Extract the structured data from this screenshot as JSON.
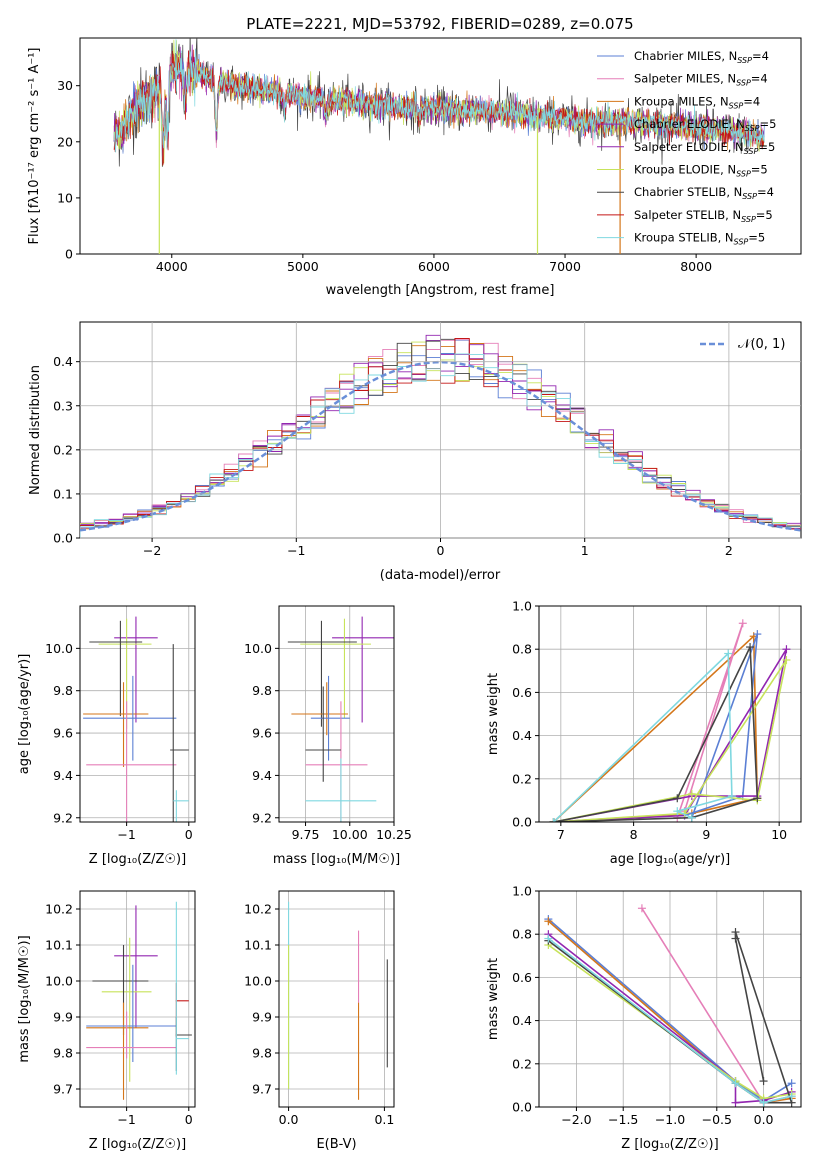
{
  "colors": {
    "Chabrier MILES": "#5b7fd4",
    "Salpeter MILES": "#e57fb8",
    "Kroupa MILES": "#d4761a",
    "Chabrier ELODIE": "#9226b0",
    "Salpeter ELODIE": "#9226b0",
    "Kroupa ELODIE": "#c7e35a",
    "Chabrier STELIB": "#444444",
    "Salpeter STELIB": "#c41616",
    "Kroupa STELIB": "#7fd8e0"
  },
  "chart_data": [
    {
      "id": "spectrum",
      "type": "line",
      "title": "PLATE=2221, MJD=53792, FIBERID=0289, z=0.075",
      "xlabel": "wavelength [Angstrom, rest frame]",
      "ylabel": "Flux [fλ10⁻¹⁷ erg cm⁻² s⁻¹ A⁻¹]",
      "xlim": [
        3300,
        8800
      ],
      "ylim": [
        0,
        38.5
      ],
      "xticks": [
        4000,
        5000,
        6000,
        7000,
        8000
      ],
      "yticks": [
        0,
        10,
        20,
        30
      ],
      "grid": false,
      "legend_position": "top-right",
      "legend": [
        "Chabrier MILES, N_SSP=4",
        "Salpeter MILES, N_SSP=4",
        "Kroupa MILES, N_SSP=4",
        "Chabrier ELODIE, N_SSP=5",
        "Salpeter ELODIE, N_SSP=5",
        "Kroupa ELODIE, N_SSP=5",
        "Chabrier STELIB, N_SSP=4",
        "Salpeter STELIB, N_SSP=5",
        "Kroupa STELIB, N_SSP=5"
      ],
      "continuum": {
        "x": [
          3560,
          3650,
          3700,
          3800,
          3900,
          3960,
          4000,
          4100,
          4200,
          4300,
          4400,
          4600,
          4800,
          5000,
          5200,
          5400,
          5600,
          5800,
          6000,
          6200,
          6400,
          6600,
          6800,
          7000,
          7200,
          7400,
          7600,
          7800,
          8000,
          8200,
          8400,
          8520
        ],
        "y": [
          21,
          23,
          25.5,
          28,
          29,
          31,
          33,
          33,
          32.5,
          31,
          30.5,
          29.5,
          29,
          28,
          27.5,
          27,
          26.5,
          26,
          26,
          25.5,
          25.5,
          25,
          24.5,
          24,
          23.5,
          23.5,
          23.5,
          23,
          22.5,
          22,
          21.5,
          20.5
        ]
      },
      "data_gaps": [
        {
          "x": 3905,
          "y_low": 0
        },
        {
          "x": 6790,
          "y_low": 0
        },
        {
          "x": 7420,
          "y_low": 0
        }
      ]
    },
    {
      "id": "residuals",
      "type": "line",
      "xlabel": "(data-model)/error",
      "ylabel": "Normed distribution",
      "xlim": [
        -2.5,
        2.5
      ],
      "ylim": [
        0,
        0.49
      ],
      "xticks": [
        -2,
        -1,
        0,
        1,
        2
      ],
      "yticks": [
        0.0,
        0.1,
        0.2,
        0.3,
        0.4
      ],
      "grid": true,
      "legend_position": "top-right",
      "legend": [
        "𝒩(0, 1)"
      ],
      "gaussian": {
        "mean": 0,
        "sigma": 1
      }
    },
    {
      "id": "age-vs-Z",
      "type": "scatter",
      "xlabel": "Z [log₁₀(Z/Z☉)]",
      "ylabel": "age  [log₁₀(age/yr)]",
      "xlim": [
        -1.75,
        0.1
      ],
      "ylim": [
        9.18,
        10.2
      ],
      "xticks": [
        -1,
        0
      ],
      "yticks": [
        9.2,
        9.4,
        9.6,
        9.8,
        10.0
      ],
      "grid": true,
      "points": [
        {
          "x": -0.85,
          "y": 10.05,
          "xerr": [
            0.35,
            0.35
          ],
          "yerr": [
            0.4,
            0.1
          ],
          "series": "Chabrier ELODIE"
        },
        {
          "x": -1.0,
          "y": 10.02,
          "xerr": [
            0.45,
            0.4
          ],
          "yerr": [
            0.4,
            0.12
          ],
          "series": "Kroupa ELODIE"
        },
        {
          "x": -1.1,
          "y": 10.03,
          "xerr": [
            0.5,
            0.35
          ],
          "yerr": [
            0.35,
            0.1
          ],
          "series": "Chabrier STELIB"
        },
        {
          "x": -1.05,
          "y": 9.69,
          "xerr": [
            0.65,
            0.4
          ],
          "yerr": [
            0.25,
            0.15
          ],
          "series": "Kroupa MILES"
        },
        {
          "x": -0.9,
          "y": 9.67,
          "xerr": [
            0.8,
            0.7
          ],
          "yerr": [
            0.2,
            0.2
          ],
          "series": "Chabrier MILES"
        },
        {
          "x": -1.0,
          "y": 9.45,
          "xerr": [
            0.65,
            0.8
          ],
          "yerr": [
            0.3,
            0.3
          ],
          "series": "Salpeter MILES"
        },
        {
          "x": -0.25,
          "y": 9.52,
          "xerr": [
            0.05,
            0.25
          ],
          "yerr": [
            0.5,
            0.5
          ],
          "series": "Chabrier STELIB"
        },
        {
          "x": -0.2,
          "y": 9.28,
          "xerr": [
            0.05,
            0.2
          ],
          "yerr": [
            0.7,
            0.05
          ],
          "series": "Kroupa STELIB"
        }
      ]
    },
    {
      "id": "age-vs-mass",
      "type": "scatter",
      "xlabel": "mass [log₁₀(M/M☉)]",
      "ylabel": "",
      "xlim": [
        9.6,
        10.25
      ],
      "ylim": [
        9.18,
        10.2
      ],
      "xticks": [
        9.75,
        10.0,
        10.25
      ],
      "yticks": [
        9.2,
        9.4,
        9.6,
        9.8,
        10.0
      ],
      "grid": true,
      "points": [
        {
          "x": 10.07,
          "y": 10.05,
          "xerr": [
            0.17,
            0.2
          ],
          "yerr": [
            0.4,
            0.1
          ],
          "series": "Chabrier ELODIE"
        },
        {
          "x": 9.97,
          "y": 10.02,
          "xerr": [
            0.25,
            0.15
          ],
          "yerr": [
            0.35,
            0.12
          ],
          "series": "Kroupa ELODIE"
        },
        {
          "x": 9.84,
          "y": 10.03,
          "xerr": [
            0.19,
            0.2
          ],
          "yerr": [
            0.4,
            0.1
          ],
          "series": "Chabrier STELIB"
        },
        {
          "x": 9.87,
          "y": 9.69,
          "xerr": [
            0.2,
            0.12
          ],
          "yerr": [
            0.1,
            0.15
          ],
          "series": "Kroupa MILES"
        },
        {
          "x": 9.88,
          "y": 9.67,
          "xerr": [
            0.1,
            0.12
          ],
          "yerr": [
            0.2,
            0.2
          ],
          "series": "Chabrier MILES"
        },
        {
          "x": 9.95,
          "y": 9.45,
          "xerr": [
            0.2,
            0.15
          ],
          "yerr": [
            0.3,
            0.3
          ],
          "series": "Salpeter MILES"
        },
        {
          "x": 9.85,
          "y": 9.52,
          "xerr": [
            0.1,
            0.1
          ],
          "yerr": [
            0.15,
            0.3
          ],
          "series": "Chabrier STELIB"
        },
        {
          "x": 9.95,
          "y": 9.28,
          "xerr": [
            0.2,
            0.2
          ],
          "yerr": [
            0.1,
            0.2
          ],
          "series": "Kroupa STELIB"
        }
      ]
    },
    {
      "id": "weight-vs-age",
      "type": "line",
      "xlabel": "age  [log₁₀(age/yr)]",
      "ylabel": "mass weight",
      "xlim": [
        6.7,
        10.3
      ],
      "ylim": [
        0,
        1.0
      ],
      "xticks": [
        7,
        8,
        9,
        10
      ],
      "yticks": [
        0.0,
        0.2,
        0.4,
        0.6,
        0.8,
        1.0
      ],
      "grid": true,
      "series": [
        {
          "name": "Kroupa MILES",
          "x": [
            6.9,
            9.65,
            9.7,
            8.8,
            6.9
          ],
          "y": [
            0.0,
            0.86,
            0.11,
            0.04,
            0.0
          ]
        },
        {
          "name": "Chabrier MILES",
          "x": [
            8.8,
            9.7,
            9.5,
            8.7
          ],
          "y": [
            0.02,
            0.87,
            0.12,
            0.03
          ]
        },
        {
          "name": "Salpeter MILES",
          "x": [
            8.6,
            9.5,
            8.7
          ],
          "y": [
            0.02,
            0.92,
            0.05
          ]
        },
        {
          "name": "Chabrier ELODIE",
          "x": [
            6.9,
            8.7,
            10.1,
            9.7,
            8.8,
            6.9
          ],
          "y": [
            0.0,
            0.03,
            0.8,
            0.12,
            0.12,
            0.0
          ]
        },
        {
          "name": "Kroupa ELODIE",
          "x": [
            6.9,
            8.7,
            10.1,
            9.7,
            8.8,
            6.9
          ],
          "y": [
            0.0,
            0.04,
            0.75,
            0.1,
            0.13,
            0.0
          ]
        },
        {
          "name": "Chabrier STELIB",
          "x": [
            6.9,
            8.6,
            9.6,
            9.7,
            8.8,
            6.9
          ],
          "y": [
            0.0,
            0.11,
            0.81,
            0.11,
            0.02,
            0.0
          ]
        },
        {
          "name": "Kroupa STELIB",
          "x": [
            6.9,
            9.3,
            9.35,
            8.6,
            8.8
          ],
          "y": [
            0.0,
            0.78,
            0.12,
            0.05,
            0.02
          ]
        }
      ]
    },
    {
      "id": "mass-vs-Z",
      "type": "scatter",
      "xlabel": "Z [log₁₀(Z/Z☉)]",
      "ylabel": "mass [log₁₀(M/M☉)]",
      "xlim": [
        -1.75,
        0.1
      ],
      "ylim": [
        9.65,
        10.25
      ],
      "xticks": [
        -1,
        0
      ],
      "yticks": [
        9.7,
        9.8,
        9.9,
        10.0,
        10.1,
        10.2
      ],
      "grid": true,
      "points": [
        {
          "x": -0.85,
          "y": 10.07,
          "xerr": [
            0.35,
            0.35
          ],
          "yerr": [
            0.2,
            0.14
          ],
          "series": "Chabrier ELODIE"
        },
        {
          "x": -0.95,
          "y": 9.97,
          "xerr": [
            0.45,
            0.35
          ],
          "yerr": [
            0.25,
            0.15
          ],
          "series": "Kroupa ELODIE"
        },
        {
          "x": -1.05,
          "y": 10.0,
          "xerr": [
            0.5,
            0.4
          ],
          "yerr": [
            0.15,
            0.1
          ],
          "series": "Chabrier STELIB"
        },
        {
          "x": -1.05,
          "y": 9.87,
          "xerr": [
            0.6,
            0.4
          ],
          "yerr": [
            0.2,
            0.07
          ],
          "series": "Kroupa MILES"
        },
        {
          "x": -0.9,
          "y": 9.875,
          "xerr": [
            0.75,
            0.7
          ],
          "yerr": [
            0.1,
            0.17
          ],
          "series": "Chabrier MILES"
        },
        {
          "x": -1.0,
          "y": 9.815,
          "xerr": [
            0.65,
            0.8
          ],
          "yerr": [
            0.03,
            0.1
          ],
          "series": "Salpeter MILES"
        },
        {
          "x": -0.2,
          "y": 9.945,
          "xerr": [
            0.01,
            0.2
          ],
          "yerr": [
            0.1,
            0.05
          ],
          "series": "Salpeter STELIB"
        },
        {
          "x": -0.2,
          "y": 9.85,
          "xerr": [
            0.01,
            0.25
          ],
          "yerr": [
            0.1,
            0.05
          ],
          "series": "Chabrier STELIB"
        },
        {
          "x": -0.2,
          "y": 9.84,
          "xerr": [
            0.01,
            0.2
          ],
          "yerr": [
            0.1,
            0.38
          ],
          "series": "Kroupa STELIB"
        }
      ]
    },
    {
      "id": "mass-vs-EBV",
      "type": "scatter",
      "xlabel": "E(B-V)",
      "ylabel": "",
      "xlim": [
        -0.01,
        0.11
      ],
      "ylim": [
        9.65,
        10.25
      ],
      "xticks": [
        0.0,
        0.1
      ],
      "yticks": [
        9.7,
        9.8,
        9.9,
        10.0,
        10.1,
        10.2
      ],
      "grid": true,
      "points": [
        {
          "x": 0.0,
          "y": 9.94,
          "yerr": [
            0.24,
            0.28
          ],
          "series": "Kroupa STELIB"
        },
        {
          "x": 0.0,
          "y": 9.9,
          "yerr": [
            0.2,
            0.2
          ],
          "series": "Kroupa ELODIE"
        },
        {
          "x": 0.073,
          "y": 9.87,
          "yerr": [
            0.2,
            0.07
          ],
          "series": "Kroupa MILES"
        },
        {
          "x": 0.073,
          "y": 10.02,
          "yerr": [
            0.08,
            0.12
          ],
          "series": "Salpeter MILES"
        },
        {
          "x": 0.103,
          "y": 9.91,
          "yerr": [
            0.15,
            0.15
          ],
          "series": "Chabrier STELIB"
        }
      ]
    },
    {
      "id": "weight-vs-Z",
      "type": "line",
      "xlabel": "Z [log₁₀(Z/Z☉)]",
      "ylabel": "mass weight",
      "xlim": [
        -2.4,
        0.4
      ],
      "ylim": [
        0,
        1.0
      ],
      "xticks": [
        -2.0,
        -1.5,
        -1.0,
        -0.5,
        0.0
      ],
      "yticks": [
        0.0,
        0.2,
        0.4,
        0.6,
        0.8,
        1.0
      ],
      "grid": true,
      "series": [
        {
          "name": "Chabrier MILES",
          "x": [
            -2.3,
            -0.3,
            0.0,
            0.3
          ],
          "y": [
            0.87,
            0.12,
            0.03,
            0.11
          ]
        },
        {
          "name": "Kroupa MILES",
          "x": [
            -2.3,
            -0.3,
            0.0,
            0.3
          ],
          "y": [
            0.86,
            0.11,
            0.02,
            0.04
          ]
        },
        {
          "name": "Salpeter MILES",
          "x": [
            -1.3,
            0.0,
            0.3
          ],
          "y": [
            0.92,
            0.02,
            0.05
          ]
        },
        {
          "name": "Chabrier ELODIE",
          "x": [
            -2.3,
            -0.3,
            -0.3,
            0.0,
            0.3
          ],
          "y": [
            0.8,
            0.12,
            0.02,
            0.03,
            0.07
          ]
        },
        {
          "name": "Kroupa ELODIE",
          "x": [
            -2.3,
            -0.3,
            0.0,
            0.3
          ],
          "y": [
            0.75,
            0.12,
            0.04,
            0.06
          ]
        },
        {
          "name": "Chabrier STELIB",
          "x": [
            -2.3,
            -0.3,
            0.0,
            0.3,
            -0.3,
            -0.3,
            0.0
          ],
          "y": [
            0.77,
            0.11,
            0.02,
            0.02,
            0.81,
            0.78,
            0.12
          ]
        },
        {
          "name": "Kroupa STELIB",
          "x": [
            -2.3,
            -0.3,
            0.0,
            0.3
          ],
          "y": [
            0.78,
            0.11,
            0.02,
            0.05
          ]
        }
      ]
    }
  ]
}
